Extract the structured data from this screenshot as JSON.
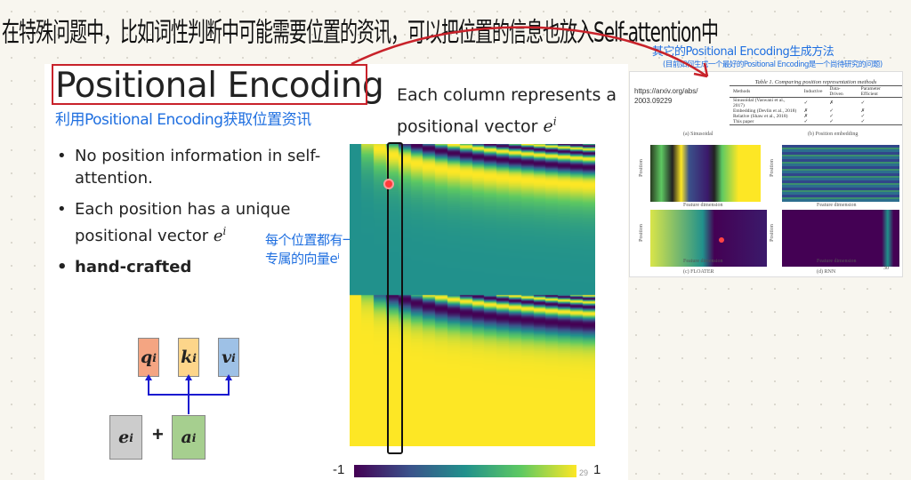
{
  "notes": {
    "top_black": "在特殊问题中，比如词性判断中可能需要位置的资讯，可以把位置的信息也放入Self-attention中",
    "under_title": "利用Positional Encoding获取位置资讯",
    "unique_vector": [
      "每个位置都有一个",
      "专属的向量eⁱ"
    ],
    "other_methods": "其它的Positional Encoding生成方法",
    "open_problem": "(目前如何生成一个最好的Positional Encoding是一个尚待研究的问题)"
  },
  "slide": {
    "title": "Positional Encoding",
    "column_heading": [
      "Each column represents a",
      "positional vector "
    ],
    "bullets": [
      "No position information in self-attention.",
      "Each position has a unique positional vector ",
      "hand-crafted"
    ],
    "diagram": {
      "q": "q",
      "k": "k",
      "v": "v",
      "e": "e",
      "a": "a",
      "plus": "+",
      "sup": "i"
    },
    "colorbar_min": "-1",
    "colorbar_max": "1",
    "page_number": "29"
  },
  "paper": {
    "url": "https://arxiv.org/abs/ 2003.09229",
    "table_caption": "Table 1. Comparing position representation methods",
    "columns": [
      "Methods",
      "Inductive",
      "Data-Driven",
      "Parameter Efficient"
    ],
    "rows": [
      [
        "Sinusoidal (Vaswani et al., 2017)",
        "✓",
        "✗",
        "✓"
      ],
      [
        "Embedding (Devlin et al., 2018)",
        "✗",
        "✓",
        "✗"
      ],
      [
        "Relative (Shaw et al., 2018)",
        "✗",
        "✓",
        "✓"
      ],
      [
        "This paper",
        "✓",
        "✓",
        "✓"
      ]
    ],
    "panels": [
      "(a) Sinusoidal",
      "(b) Position embedding",
      "(c) FLOATER",
      "(d) RNN"
    ],
    "axis_x": "Feature dimension",
    "axis_y": "Position",
    "page_number": "30"
  },
  "colors": {
    "annotation_blue": "#1f6fe0",
    "highlight_red": "#c8222a",
    "q_box": "#f4a582",
    "k_box": "#fdd58a",
    "v_box": "#9ec1e6",
    "e_box": "#cccccc",
    "a_box": "#a6cf8f"
  }
}
